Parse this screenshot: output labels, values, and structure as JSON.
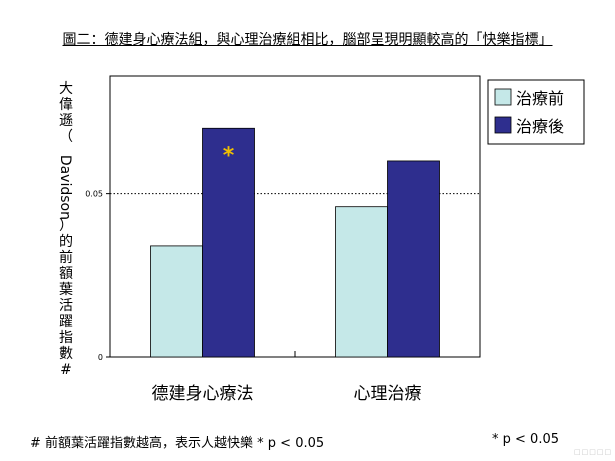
{
  "figure": {
    "title": "圖二：德建身心療法組，與心理治療組相比，腦部呈現明顯較高的「快樂指標」",
    "footnote_left": "# 前額葉活躍指數越高，表示人越快樂 * p < 0.05",
    "footnote_right": "* p < 0.05",
    "watermark": "□□□□□"
  },
  "chart_data": {
    "type": "bar",
    "categories": [
      "德建身心療法",
      "心理治療"
    ],
    "series": [
      {
        "name": "治療前",
        "values": [
          0.034,
          0.046
        ],
        "color": "#c5e8e8"
      },
      {
        "name": "治療後",
        "values": [
          0.07,
          0.06
        ],
        "color": "#2e2e8e"
      }
    ],
    "ylabel": "大偉遜（Davidson）的前額葉活躍指數#",
    "yticks": [
      {
        "value": 0,
        "label": "0"
      },
      {
        "value": 0.05,
        "label": "0.05"
      }
    ],
    "ylim": [
      0,
      0.086
    ],
    "reference_line": {
      "value": 0.05,
      "style": "dotted"
    },
    "annotations": [
      {
        "text": "*",
        "category_index": 0,
        "series_index": 1,
        "color": "#f0c000"
      }
    ],
    "legend": {
      "position": "top-right"
    }
  }
}
